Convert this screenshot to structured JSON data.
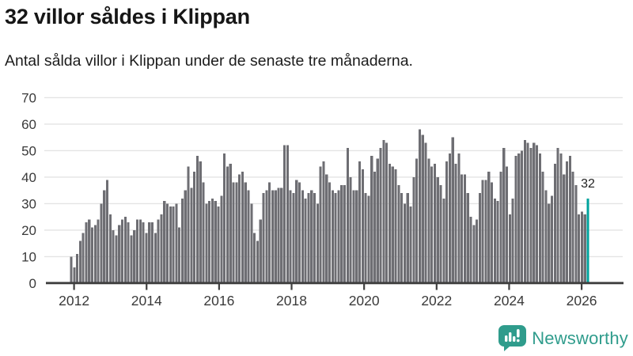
{
  "header": {
    "title": "32 villor såldes i Klippan",
    "subtitle": "Antal sålda villor i Klippan under de senaste tre månaderna."
  },
  "chart_data": {
    "type": "bar",
    "title": "32 villor såldes i Klippan",
    "xlabel": "",
    "ylabel": "",
    "frequency": "monthly",
    "x_start": "2011-11",
    "x_end": "2026-03",
    "x_tick_labels": [
      "2012",
      "2014",
      "2016",
      "2018",
      "2020",
      "2022",
      "2024",
      "2026"
    ],
    "y_ticks": [
      0,
      10,
      20,
      30,
      40,
      50,
      60,
      70
    ],
    "ylim": [
      0,
      74
    ],
    "grid": "horizontal",
    "legend": "none",
    "highlight_last": true,
    "annotation_value": "32",
    "values": [
      10,
      6,
      11,
      16,
      19,
      23,
      24,
      21,
      22,
      24,
      30,
      35,
      39,
      26,
      20,
      18,
      22,
      24,
      25,
      23,
      18,
      20,
      24,
      24,
      23,
      19,
      23,
      23,
      19,
      24,
      26,
      31,
      30,
      29,
      29,
      30,
      21,
      32,
      35,
      44,
      36,
      42,
      48,
      46,
      38,
      30,
      31,
      32,
      31,
      29,
      33,
      49,
      44,
      45,
      38,
      38,
      41,
      42,
      38,
      35,
      30,
      19,
      16,
      24,
      34,
      35,
      38,
      35,
      35,
      36,
      36,
      52,
      52,
      35,
      34,
      39,
      38,
      35,
      32,
      34,
      35,
      34,
      30,
      44,
      46,
      41,
      38,
      35,
      34,
      35,
      37,
      37,
      51,
      40,
      35,
      35,
      46,
      43,
      34,
      33,
      48,
      42,
      47,
      51,
      54,
      53,
      45,
      44,
      43,
      37,
      34,
      30,
      34,
      29,
      40,
      47,
      58,
      56,
      53,
      47,
      44,
      45,
      40,
      37,
      32,
      46,
      49,
      55,
      45,
      49,
      41,
      41,
      34,
      25,
      22,
      24,
      34,
      39,
      39,
      42,
      38,
      32,
      31,
      42,
      51,
      44,
      26,
      32,
      48,
      49,
      50,
      54,
      53,
      51,
      53,
      52,
      49,
      42,
      35,
      30,
      33,
      45,
      51,
      49,
      41,
      46,
      48,
      42,
      37,
      26,
      27,
      26,
      32
    ]
  },
  "colors": {
    "bar": "#6e6e73",
    "highlight": "#00a39d",
    "grid": "#e4e4e4",
    "axis": "#3f3f3f",
    "tick_text": "#3a3a3a",
    "annotation_text": "#1f1f1f",
    "brand": "#2f9c8c"
  },
  "branding": {
    "name": "Newsworthy",
    "icon": "bar-chart-speech-bubble"
  }
}
